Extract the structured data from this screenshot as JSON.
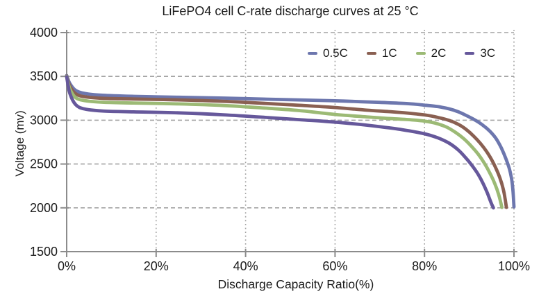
{
  "chart_data": {
    "type": "line",
    "title": "LiFePO4 cell C-rate discharge curves at 25 °C",
    "xlabel": "Discharge Capacity Ratio(%)",
    "ylabel": "Voltage (mv)",
    "xlim": [
      0,
      100
    ],
    "ylim": [
      1500,
      4000
    ],
    "xticks": {
      "values": [
        0,
        20,
        40,
        60,
        80,
        100
      ],
      "labels": [
        "0%",
        "20%",
        "40%",
        "60%",
        "80%",
        "100%"
      ]
    },
    "yticks": {
      "values": [
        1500,
        2000,
        2500,
        3000,
        3500,
        4000
      ],
      "labels": [
        "1500",
        "2000",
        "2500",
        "3000",
        "3500",
        "4000"
      ]
    },
    "grid": {
      "horizontal_style": "dashed",
      "vertical_style": "dotted",
      "color": "#a3a3a3",
      "on": true
    },
    "axis_color": "#8c8c8c",
    "text_color": "#1a1a1a",
    "legend_position": "top-right-inside",
    "series": [
      {
        "name": "0.5C",
        "color": "#6D77AE",
        "points": [
          [
            0,
            3510
          ],
          [
            0.7,
            3420
          ],
          [
            2,
            3340
          ],
          [
            4,
            3305
          ],
          [
            8,
            3285
          ],
          [
            15,
            3272
          ],
          [
            25,
            3262
          ],
          [
            35,
            3252
          ],
          [
            45,
            3240
          ],
          [
            55,
            3228
          ],
          [
            62,
            3218
          ],
          [
            70,
            3203
          ],
          [
            76,
            3190
          ],
          [
            80,
            3172
          ],
          [
            83,
            3155
          ],
          [
            85.5,
            3130
          ],
          [
            87.6,
            3095
          ],
          [
            89.5,
            3050
          ],
          [
            91.2,
            3005
          ],
          [
            93,
            2945
          ],
          [
            94.6,
            2875
          ],
          [
            96,
            2790
          ],
          [
            97.2,
            2680
          ],
          [
            98.2,
            2560
          ],
          [
            99,
            2440
          ],
          [
            99.5,
            2320
          ],
          [
            99.8,
            2180
          ],
          [
            100,
            2010
          ]
        ]
      },
      {
        "name": "1C",
        "color": "#8A6052",
        "points": [
          [
            0,
            3505
          ],
          [
            0.7,
            3390
          ],
          [
            2,
            3302
          ],
          [
            4,
            3268
          ],
          [
            8,
            3250
          ],
          [
            15,
            3242
          ],
          [
            25,
            3232
          ],
          [
            35,
            3216
          ],
          [
            45,
            3190
          ],
          [
            52,
            3170
          ],
          [
            60,
            3145
          ],
          [
            67,
            3115
          ],
          [
            72,
            3098
          ],
          [
            76,
            3082
          ],
          [
            80,
            3060
          ],
          [
            83,
            3032
          ],
          [
            85.5,
            2998
          ],
          [
            87.6,
            2952
          ],
          [
            89.3,
            2895
          ],
          [
            91,
            2818
          ],
          [
            92.5,
            2735
          ],
          [
            93.8,
            2648
          ],
          [
            95,
            2550
          ],
          [
            96,
            2448
          ],
          [
            96.9,
            2335
          ],
          [
            97.6,
            2215
          ],
          [
            98,
            2110
          ],
          [
            98.3,
            2005
          ]
        ]
      },
      {
        "name": "2C",
        "color": "#9CBA75",
        "points": [
          [
            0,
            3500
          ],
          [
            0.7,
            3358
          ],
          [
            2,
            3258
          ],
          [
            4,
            3224
          ],
          [
            8,
            3205
          ],
          [
            15,
            3196
          ],
          [
            25,
            3186
          ],
          [
            35,
            3168
          ],
          [
            45,
            3136
          ],
          [
            52,
            3110
          ],
          [
            60,
            3066
          ],
          [
            67,
            3038
          ],
          [
            72,
            3020
          ],
          [
            76,
            3008
          ],
          [
            80,
            2990
          ],
          [
            82.5,
            2965
          ],
          [
            85,
            2920
          ],
          [
            87,
            2858
          ],
          [
            88.8,
            2788
          ],
          [
            90.5,
            2702
          ],
          [
            92,
            2612
          ],
          [
            93.4,
            2508
          ],
          [
            94.6,
            2398
          ],
          [
            95.7,
            2278
          ],
          [
            96.6,
            2148
          ],
          [
            97.3,
            2005
          ]
        ]
      },
      {
        "name": "3C",
        "color": "#66589B",
        "points": [
          [
            0,
            3495
          ],
          [
            0.7,
            3308
          ],
          [
            2,
            3178
          ],
          [
            4,
            3128
          ],
          [
            8,
            3105
          ],
          [
            15,
            3095
          ],
          [
            25,
            3084
          ],
          [
            35,
            3062
          ],
          [
            45,
            3030
          ],
          [
            52,
            3006
          ],
          [
            58,
            2986
          ],
          [
            64,
            2960
          ],
          [
            70,
            2926
          ],
          [
            75,
            2892
          ],
          [
            80,
            2845
          ],
          [
            83,
            2798
          ],
          [
            85.5,
            2738
          ],
          [
            87.6,
            2658
          ],
          [
            89.2,
            2572
          ],
          [
            90.4,
            2498
          ],
          [
            91.8,
            2398
          ],
          [
            93,
            2288
          ],
          [
            94,
            2175
          ],
          [
            94.9,
            2055
          ],
          [
            95.4,
            2000
          ]
        ]
      }
    ]
  }
}
